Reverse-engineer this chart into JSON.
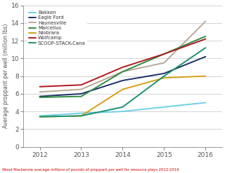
{
  "years": [
    2012,
    2013,
    2014,
    2015,
    2016
  ],
  "series": [
    {
      "name": "Bakken",
      "color": "#6dd0ea",
      "values": [
        3.5,
        3.8,
        4.0,
        4.5,
        5.0
      ]
    },
    {
      "name": "Eagle Ford",
      "color": "#1a3068",
      "values": [
        5.7,
        6.0,
        7.5,
        8.3,
        10.2
      ]
    },
    {
      "name": "Haynesville",
      "color": "#b8a898",
      "values": [
        6.2,
        6.5,
        8.5,
        9.5,
        14.2
      ]
    },
    {
      "name": "Marcellus",
      "color": "#2e8b40",
      "values": [
        5.6,
        5.7,
        8.5,
        10.5,
        12.5
      ]
    },
    {
      "name": "Niobrara",
      "color": "#d4a017",
      "values": [
        3.4,
        3.5,
        6.5,
        7.8,
        8.0
      ]
    },
    {
      "name": "Wolfcamp",
      "color": "#b01820",
      "values": [
        6.8,
        7.0,
        9.0,
        10.5,
        12.2
      ]
    },
    {
      "name": "SCOOP-STACK-Cana",
      "color": "#1a9070",
      "values": [
        3.4,
        3.5,
        4.5,
        8.0,
        11.2
      ]
    }
  ],
  "xlim": [
    2011.6,
    2016.4
  ],
  "ylim": [
    0,
    16
  ],
  "yticks": [
    0,
    2,
    4,
    6,
    8,
    10,
    12,
    14,
    16
  ],
  "xticks": [
    2012,
    2013,
    2014,
    2015,
    2016
  ],
  "ylabel": "Average proppant per well (million lbs)",
  "footnote": "Wood Mackenzie average millions of pounds of proppant per well for resource plays 2012-2016",
  "fig_bg": "#ffffff",
  "plot_bg": "#ffffff",
  "grid_color": "#cccccc",
  "spine_color": "#888888",
  "tick_color": "#555555",
  "footnote_color": "#cc0000"
}
